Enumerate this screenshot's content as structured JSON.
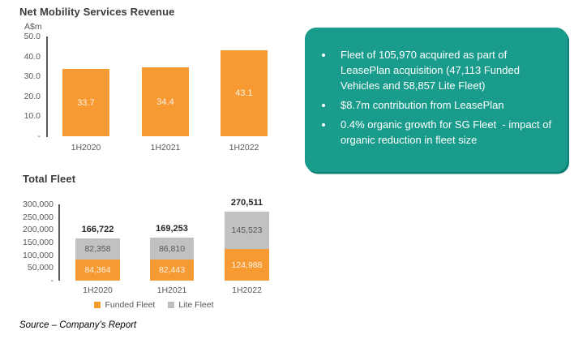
{
  "colors": {
    "funded_orange": "#F79A31",
    "lite_gray": "#C1C1C4",
    "panel_teal": "#1A9C8C",
    "axis_text": "#595959",
    "title_text": "#3B3B3B"
  },
  "charts": {
    "revenue": {
      "title": "Net Mobility Services Revenue",
      "unit": "A$m",
      "yticks": [
        "50.0",
        "40.0",
        "30.0",
        "20.0",
        "10.0",
        "-"
      ],
      "categories": [
        "1H2020",
        "1H2021",
        "1H2022"
      ],
      "value_labels": [
        "33.7",
        "34.4",
        "43.1"
      ]
    },
    "fleet": {
      "title": "Total Fleet",
      "yticks": [
        "300,000",
        "250,000",
        "200,000",
        "150,000",
        "100,000",
        "50,000",
        "-"
      ],
      "categories": [
        "1H2020",
        "1H2021",
        "1H2022"
      ],
      "funded_labels": [
        "84,364",
        "82,443",
        "124,988"
      ],
      "lite_labels": [
        "82,358",
        "86,810",
        "145,523"
      ],
      "total_labels": [
        "166,722",
        "169,253",
        "270,511"
      ],
      "legend": [
        "Funded Fleet",
        "Lite Fleet"
      ]
    }
  },
  "panel": {
    "bullets": [
      "Fleet of 105,970 acquired as part of LeasePlan acquisition (47,113 Funded Vehicles and 58,857 Lite Fleet)",
      "$8.7m contribution from LeasePlan",
      "0.4% organic growth for SG Fleet  - impact of organic reduction in fleet size"
    ]
  },
  "source": "Source – Company’s Report",
  "chart_data": [
    {
      "type": "bar",
      "title": "Net Mobility Services Revenue",
      "ylabel": "A$m",
      "categories": [
        "1H2020",
        "1H2021",
        "1H2022"
      ],
      "values": [
        33.7,
        34.4,
        43.1
      ],
      "ylim": [
        0,
        50
      ],
      "grid": false,
      "bar_color": "#F79A31"
    },
    {
      "type": "bar",
      "stacked": true,
      "title": "Total Fleet",
      "categories": [
        "1H2020",
        "1H2021",
        "1H2022"
      ],
      "series": [
        {
          "name": "Funded Fleet",
          "color": "#F79A31",
          "values": [
            84364,
            82443,
            124988
          ]
        },
        {
          "name": "Lite Fleet",
          "color": "#C1C1C4",
          "values": [
            82358,
            86810,
            145523
          ]
        }
      ],
      "totals": [
        166722,
        169253,
        270511
      ],
      "ylim": [
        0,
        300000
      ],
      "grid": false,
      "legend_position": "bottom"
    }
  ]
}
